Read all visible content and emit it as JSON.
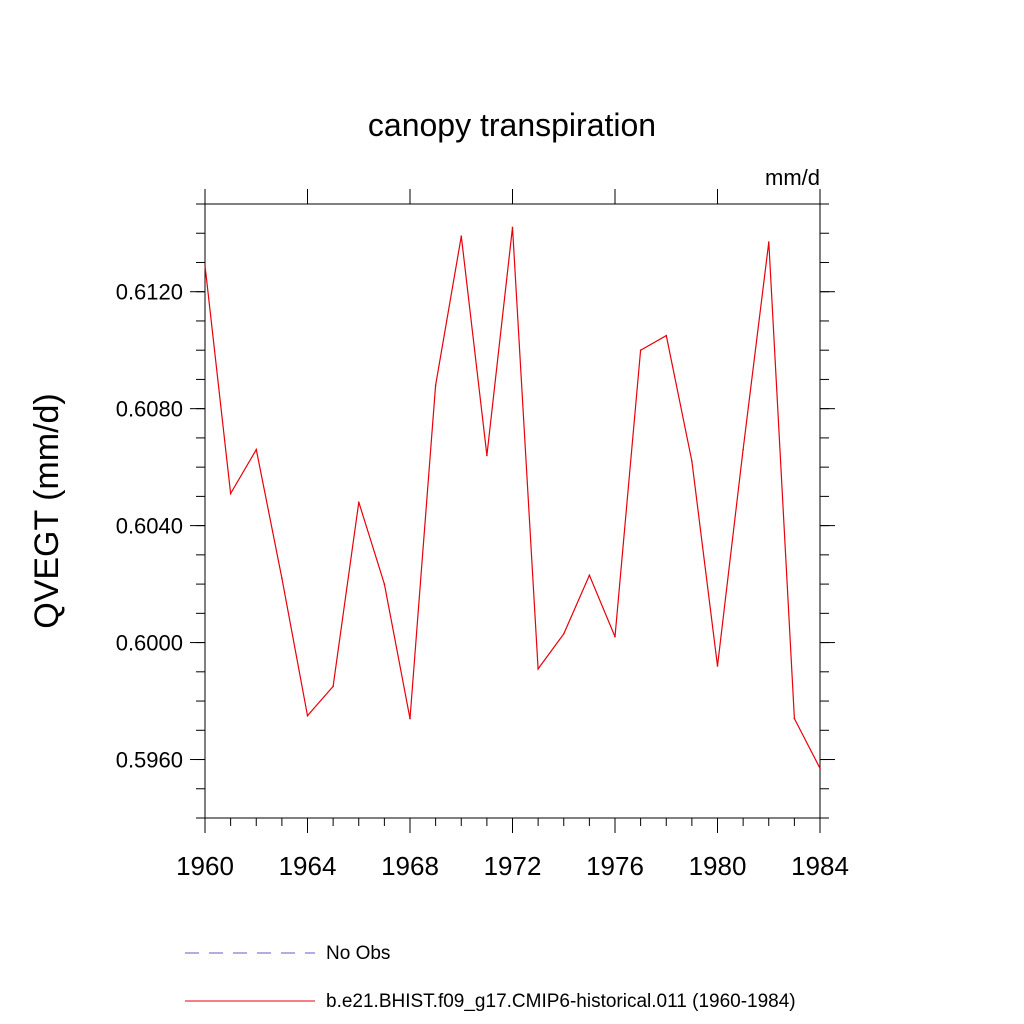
{
  "chart_data": {
    "type": "line",
    "title": "canopy transpiration",
    "unit_label": "mm/d",
    "ylabel": "QVEGT  (mm/d)",
    "xlabel": "",
    "xlim": [
      1960,
      1984
    ],
    "ylim": [
      0.594,
      0.615
    ],
    "xticks": [
      "1960",
      "1964",
      "1968",
      "1972",
      "1976",
      "1980",
      "1984"
    ],
    "yticks": [
      "0.5960",
      "0.6000",
      "0.6040",
      "0.6080",
      "0.6120"
    ],
    "grid": false,
    "legend_placement": "bottom",
    "series": [
      {
        "name": "b.e21.BHIST.f09_g17.CMIP6-historical.011 (1960-1984)",
        "color": "#e8000b",
        "x": [
          1960,
          1961,
          1962,
          1963,
          1964,
          1965,
          1966,
          1967,
          1968,
          1969,
          1970,
          1971,
          1972,
          1973,
          1974,
          1975,
          1976,
          1977,
          1978,
          1979,
          1980,
          1981,
          1982,
          1983,
          1984
        ],
        "values": [
          0.6129,
          0.6051,
          0.6066,
          0.6022,
          0.5975,
          0.5985,
          0.6048,
          0.602,
          0.5974,
          0.6088,
          0.6139,
          0.6064,
          0.6142,
          0.5991,
          0.6003,
          0.6023,
          0.6002,
          0.61,
          0.6105,
          0.6062,
          0.5992,
          0.6066,
          0.6137,
          0.5974,
          0.5957
        ]
      }
    ]
  },
  "legend": [
    {
      "label": "No Obs",
      "color": "#6a5acd",
      "style": "dashed"
    },
    {
      "label": "b.e21.BHIST.f09_g17.CMIP6-historical.011 (1960-1984)",
      "color": "#e8000b",
      "style": "solid"
    }
  ]
}
